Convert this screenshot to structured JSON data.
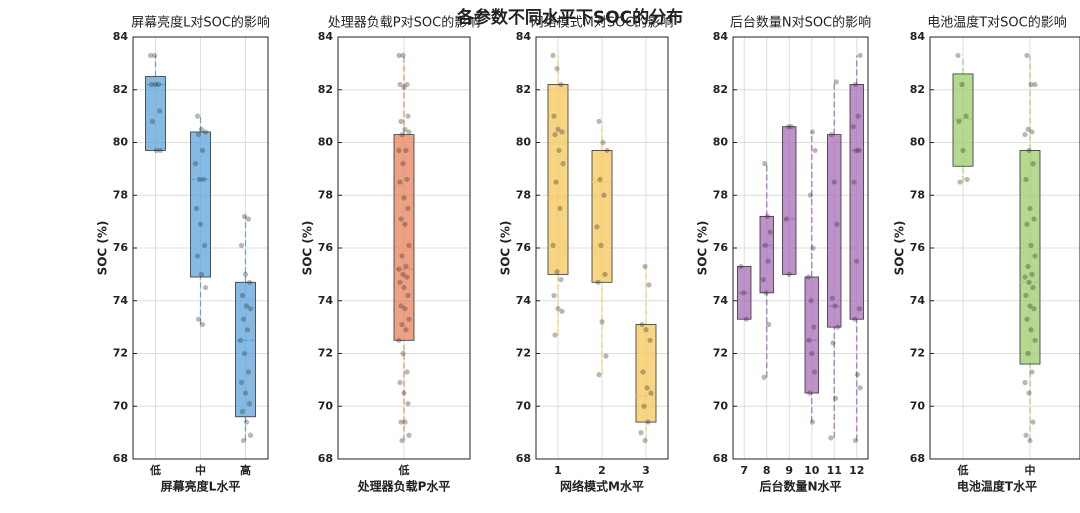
{
  "title": "各参数不同水平下SOC的分布",
  "chart_data": [
    {
      "type": "box",
      "title": "屏幕亮度L对SOC的影响",
      "xlabel": "屏幕亮度L水平",
      "ylabel": "SOC (%)",
      "categories": [
        "低",
        "中",
        "高"
      ],
      "color": "#5ba3d9",
      "ylim": [
        68,
        84
      ],
      "yticks": [
        68,
        70,
        72,
        74,
        76,
        78,
        80,
        82,
        84
      ],
      "grid": true,
      "boxes": [
        {
          "whislo": 79.7,
          "q1": 79.7,
          "med": 82.2,
          "q3": 82.5,
          "whishi": 83.3,
          "points": [
            83.3,
            83.3,
            82.2,
            82.2,
            82.2,
            81.2,
            80.8,
            79.7,
            79.7
          ]
        },
        {
          "whislo": 73.1,
          "q1": 74.9,
          "med": 78.6,
          "q3": 80.4,
          "whishi": 81.0,
          "points": [
            81.0,
            80.5,
            80.4,
            80.3,
            79.7,
            79.2,
            78.6,
            78.6,
            77.5,
            76.9,
            76.1,
            75.7,
            75.0,
            74.5,
            73.3,
            73.1
          ]
        },
        {
          "whislo": 68.7,
          "q1": 69.6,
          "med": 72.5,
          "q3": 74.7,
          "whishi": 77.2,
          "points": [
            77.2,
            77.1,
            76.1,
            75.0,
            74.7,
            74.2,
            73.8,
            73.7,
            73.3,
            72.9,
            72.5,
            72.0,
            71.3,
            70.9,
            70.5,
            70.1,
            69.8,
            69.4,
            68.9,
            68.7
          ]
        }
      ]
    },
    {
      "type": "box",
      "title": "处理器负载P对SOC的影响",
      "xlabel": "处理器负载P水平",
      "ylabel": "SOC (%)",
      "categories": [
        "低"
      ],
      "color": "#e8825a",
      "ylim": [
        68,
        84
      ],
      "yticks": [
        68,
        70,
        72,
        74,
        76,
        78,
        80,
        82,
        84
      ],
      "grid": true,
      "boxes": [
        {
          "whislo": 68.7,
          "q1": 72.5,
          "med": 75.2,
          "q3": 80.3,
          "whishi": 83.3,
          "points": [
            83.3,
            83.3,
            82.2,
            82.2,
            82.1,
            81.0,
            80.8,
            80.5,
            80.4,
            80.3,
            79.7,
            79.7,
            79.2,
            78.6,
            78.5,
            77.9,
            77.5,
            77.1,
            76.9,
            76.1,
            75.7,
            75.3,
            75.2,
            75.0,
            74.9,
            74.7,
            74.5,
            74.2,
            73.8,
            73.7,
            73.3,
            73.1,
            72.9,
            72.5,
            72.0,
            71.3,
            70.9,
            70.5,
            70.1,
            69.4,
            69.4,
            68.9,
            68.7
          ]
        }
      ]
    },
    {
      "type": "box",
      "title": "网络模式M对SOC的影响",
      "xlabel": "网络模式M水平",
      "ylabel": "SOC (%)",
      "categories": [
        "1",
        "2",
        "3"
      ],
      "color": "#f5c75a",
      "ylim": [
        68,
        84
      ],
      "yticks": [
        68,
        70,
        72,
        74,
        76,
        78,
        80,
        82,
        84
      ],
      "grid": true,
      "boxes": [
        {
          "whislo": 72.7,
          "q1": 75.0,
          "med": 77.9,
          "q3": 82.2,
          "whishi": 83.3,
          "points": [
            83.3,
            82.8,
            82.2,
            81.0,
            80.5,
            80.4,
            80.3,
            79.7,
            79.2,
            78.5,
            77.5,
            76.1,
            75.1,
            74.8,
            74.2,
            73.7,
            73.6,
            72.7
          ]
        },
        {
          "whislo": 71.2,
          "q1": 74.7,
          "med": 78.5,
          "q3": 79.7,
          "whishi": 80.8,
          "points": [
            80.8,
            80.0,
            79.7,
            78.6,
            78.0,
            76.8,
            76.1,
            75.0,
            74.7,
            73.2,
            71.9,
            71.2
          ]
        },
        {
          "whislo": 68.7,
          "q1": 69.4,
          "med": 70.4,
          "q3": 73.1,
          "whishi": 75.3,
          "points": [
            75.3,
            74.6,
            73.1,
            72.9,
            72.5,
            71.3,
            70.7,
            70.5,
            70.0,
            69.4,
            69.0,
            68.7
          ]
        }
      ]
    },
    {
      "type": "box",
      "title": "后台数量N对SOC的影响",
      "xlabel": "后台数量N水平",
      "ylabel": "SOC (%)",
      "categories": [
        "7",
        "8",
        "9",
        "10",
        "11",
        "12"
      ],
      "color": "#a86cb8",
      "ylim": [
        68,
        84
      ],
      "yticks": [
        68,
        70,
        72,
        74,
        76,
        78,
        80,
        82,
        84
      ],
      "grid": true,
      "boxes": [
        {
          "whislo": 73.3,
          "q1": 73.3,
          "med": 74.3,
          "q3": 75.3,
          "whishi": 75.3,
          "points": [
            75.3,
            74.3,
            73.3
          ]
        },
        {
          "whislo": 71.1,
          "q1": 74.3,
          "med": 76.1,
          "q3": 77.2,
          "whishi": 79.2,
          "points": [
            79.2,
            77.2,
            76.6,
            76.1,
            75.5,
            74.8,
            74.3,
            73.1,
            71.1
          ]
        },
        {
          "whislo": 75.0,
          "q1": 75.0,
          "med": 77.1,
          "q3": 80.6,
          "whishi": 80.6,
          "points": [
            80.6,
            80.6,
            77.1,
            75.0
          ]
        },
        {
          "whislo": 69.4,
          "q1": 70.5,
          "med": 72.5,
          "q3": 74.9,
          "whishi": 80.4,
          "points": [
            80.4,
            79.7,
            78.0,
            76.0,
            74.9,
            74.0,
            73.0,
            72.5,
            72.0,
            71.3,
            70.5,
            69.4
          ]
        },
        {
          "whislo": 68.8,
          "q1": 73.0,
          "med": 73.8,
          "q3": 80.3,
          "whishi": 82.3,
          "points": [
            82.3,
            80.3,
            78.5,
            76.9,
            74.1,
            73.8,
            73.0,
            72.4,
            70.3,
            68.8
          ]
        },
        {
          "whislo": 68.7,
          "q1": 73.3,
          "med": 79.7,
          "q3": 82.2,
          "whishi": 83.3,
          "points": [
            83.3,
            82.2,
            81.0,
            80.6,
            79.7,
            79.7,
            78.5,
            75.5,
            73.7,
            73.3,
            71.2,
            70.7,
            68.7
          ]
        }
      ]
    },
    {
      "type": "box",
      "title": "电池温度T对SOC的影响",
      "xlabel": "电池温度T水平",
      "ylabel": "SOC (%)",
      "categories": [
        "低",
        "中"
      ],
      "color": "#9ccc6a",
      "ylim": [
        68,
        84
      ],
      "yticks": [
        68,
        70,
        72,
        74,
        76,
        78,
        80,
        82,
        84
      ],
      "grid": true,
      "boxes": [
        {
          "whislo": 78.5,
          "q1": 79.1,
          "med": 80.9,
          "q3": 82.6,
          "whishi": 83.3,
          "points": [
            83.3,
            82.2,
            81.0,
            80.8,
            79.7,
            78.6,
            78.5
          ]
        },
        {
          "whislo": 68.7,
          "q1": 71.6,
          "med": 74.7,
          "q3": 79.7,
          "whishi": 83.3,
          "points": [
            83.3,
            82.2,
            82.2,
            80.5,
            80.4,
            80.3,
            79.7,
            79.2,
            78.6,
            77.5,
            77.1,
            76.9,
            76.1,
            75.7,
            75.3,
            75.0,
            74.9,
            74.7,
            74.5,
            74.2,
            73.8,
            73.7,
            73.3,
            72.9,
            72.5,
            72.0,
            71.3,
            70.9,
            70.5,
            69.4,
            68.9,
            68.7
          ]
        }
      ]
    }
  ]
}
